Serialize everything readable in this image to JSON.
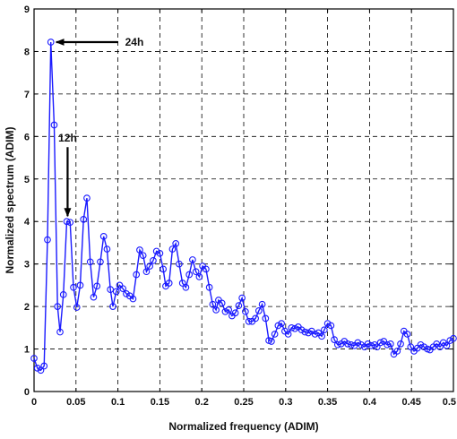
{
  "chart_data": {
    "type": "line",
    "title": "",
    "xlabel": "Normalized frequency (ADIM)",
    "ylabel": "Normalized spectrum (ADIM)",
    "xlim": [
      0,
      0.5
    ],
    "ylim": [
      0,
      9
    ],
    "grid": true,
    "grid_style": "dashed",
    "legend": "none",
    "x_ticks": [
      0,
      0.05,
      0.1,
      0.15,
      0.2,
      0.25,
      0.3,
      0.35,
      0.4,
      0.45,
      0.5
    ],
    "x_tick_labels": [
      "0",
      "0.05",
      "0.1",
      "0.15",
      "0.2",
      "0.25",
      "0.3",
      "0.35",
      "0.4",
      "0.45",
      "0.5"
    ],
    "y_ticks": [
      0,
      1,
      2,
      3,
      4,
      5,
      6,
      7,
      8,
      9
    ],
    "y_tick_labels": [
      "0",
      "1",
      "2",
      "3",
      "4",
      "5",
      "6",
      "7",
      "8",
      "9"
    ],
    "series": [
      {
        "color": "#1a1aff",
        "marker": "circle",
        "x": [
          0.0,
          0.004,
          0.008,
          0.012,
          0.016,
          0.02,
          0.024,
          0.028,
          0.031,
          0.035,
          0.039,
          0.043,
          0.047,
          0.051,
          0.055,
          0.059,
          0.063,
          0.067,
          0.071,
          0.075,
          0.079,
          0.083,
          0.087,
          0.091,
          0.094,
          0.098,
          0.102,
          0.106,
          0.11,
          0.114,
          0.118,
          0.122,
          0.126,
          0.13,
          0.134,
          0.138,
          0.142,
          0.146,
          0.15,
          0.154,
          0.157,
          0.161,
          0.165,
          0.169,
          0.173,
          0.177,
          0.181,
          0.185,
          0.189,
          0.193,
          0.197,
          0.201,
          0.205,
          0.209,
          0.213,
          0.217,
          0.22,
          0.224,
          0.228,
          0.232,
          0.236,
          0.24,
          0.244,
          0.248,
          0.252,
          0.256,
          0.26,
          0.264,
          0.268,
          0.272,
          0.276,
          0.28,
          0.283,
          0.287,
          0.291,
          0.295,
          0.299,
          0.303,
          0.307,
          0.311,
          0.315,
          0.319,
          0.323,
          0.327,
          0.331,
          0.335,
          0.339,
          0.343,
          0.346,
          0.35,
          0.354,
          0.358,
          0.362,
          0.366,
          0.37,
          0.374,
          0.378,
          0.382,
          0.386,
          0.39,
          0.394,
          0.398,
          0.402,
          0.406,
          0.409,
          0.413,
          0.417,
          0.421,
          0.425,
          0.429,
          0.433,
          0.437,
          0.441,
          0.445,
          0.449,
          0.453,
          0.457,
          0.461,
          0.465,
          0.469,
          0.472,
          0.476,
          0.48,
          0.484,
          0.488,
          0.492,
          0.496,
          0.5
        ],
        "y": [
          0.78,
          0.55,
          0.5,
          0.6,
          3.57,
          8.22,
          6.27,
          2.0,
          1.4,
          2.28,
          4.0,
          3.98,
          2.45,
          1.98,
          2.5,
          4.05,
          4.55,
          3.05,
          2.22,
          2.48,
          3.05,
          3.65,
          3.35,
          2.4,
          2.0,
          2.35,
          2.5,
          2.42,
          2.3,
          2.25,
          2.18,
          2.75,
          3.33,
          3.2,
          2.82,
          2.95,
          3.08,
          3.3,
          3.25,
          2.88,
          2.48,
          2.55,
          3.35,
          3.48,
          3.0,
          2.55,
          2.45,
          2.75,
          3.1,
          2.82,
          2.7,
          2.95,
          2.88,
          2.45,
          2.05,
          1.92,
          2.15,
          2.08,
          1.88,
          1.92,
          1.78,
          1.85,
          2.02,
          2.2,
          1.88,
          1.65,
          1.65,
          1.72,
          1.9,
          2.05,
          1.72,
          1.2,
          1.18,
          1.35,
          1.55,
          1.6,
          1.42,
          1.35,
          1.5,
          1.48,
          1.52,
          1.45,
          1.4,
          1.38,
          1.42,
          1.35,
          1.38,
          1.3,
          1.45,
          1.6,
          1.55,
          1.22,
          1.1,
          1.12,
          1.18,
          1.12,
          1.1,
          1.08,
          1.15,
          1.1,
          1.05,
          1.12,
          1.08,
          1.1,
          1.05,
          1.15,
          1.18,
          1.1,
          1.12,
          0.88,
          0.95,
          1.12,
          1.42,
          1.35,
          1.05,
          0.95,
          1.02,
          1.1,
          1.05,
          1.0,
          0.98,
          1.05,
          1.12,
          1.05,
          1.15,
          1.08,
          1.2,
          1.25
        ]
      }
    ],
    "annotations": [
      {
        "text": "24h",
        "arrow_to": [
          0.02,
          8.22
        ],
        "arrow_from": [
          0.1,
          8.22
        ]
      },
      {
        "text": "12h",
        "arrow_to": [
          0.04,
          4.0
        ],
        "arrow_from": [
          0.04,
          5.75
        ]
      }
    ]
  }
}
